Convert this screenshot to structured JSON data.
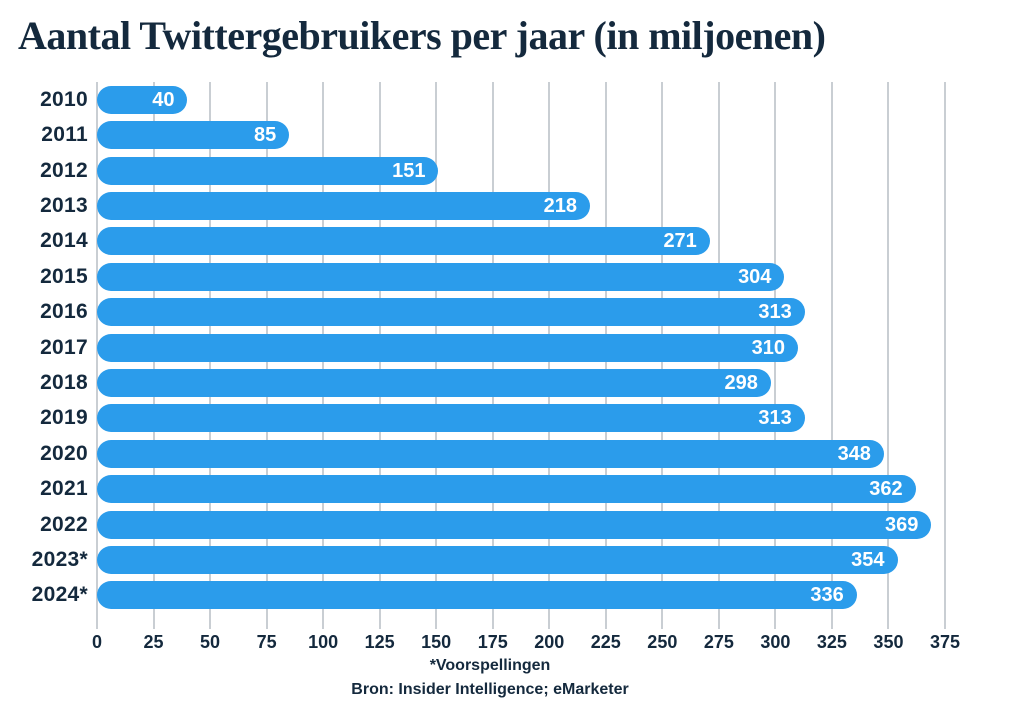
{
  "chart_data": {
    "type": "bar",
    "orientation": "horizontal",
    "title": "Aantal Twittergebruikers per jaar (in miljoenen)",
    "categories": [
      "2010",
      "2011",
      "2012",
      "2013",
      "2014",
      "2015",
      "2016",
      "2017",
      "2018",
      "2019",
      "2020",
      "2021",
      "2022",
      "2023*",
      "2024*"
    ],
    "values": [
      40,
      85,
      151,
      218,
      271,
      304,
      313,
      310,
      298,
      313,
      348,
      362,
      369,
      354,
      336
    ],
    "xlabel": "",
    "ylabel": "",
    "xlim": [
      0,
      375
    ],
    "xticks": [
      0,
      25,
      50,
      75,
      100,
      125,
      150,
      175,
      200,
      225,
      250,
      275,
      300,
      325,
      350,
      375
    ],
    "grid": true,
    "legend": "none",
    "footnote": "*Voorspellingen",
    "source": "Bron: Insider Intelligence; eMarketer",
    "colors": {
      "bar": "#2b9ceb",
      "text": "#14293d",
      "gridline": "#c9ced3",
      "value_label": "#ffffff",
      "background": "#ffffff"
    }
  }
}
